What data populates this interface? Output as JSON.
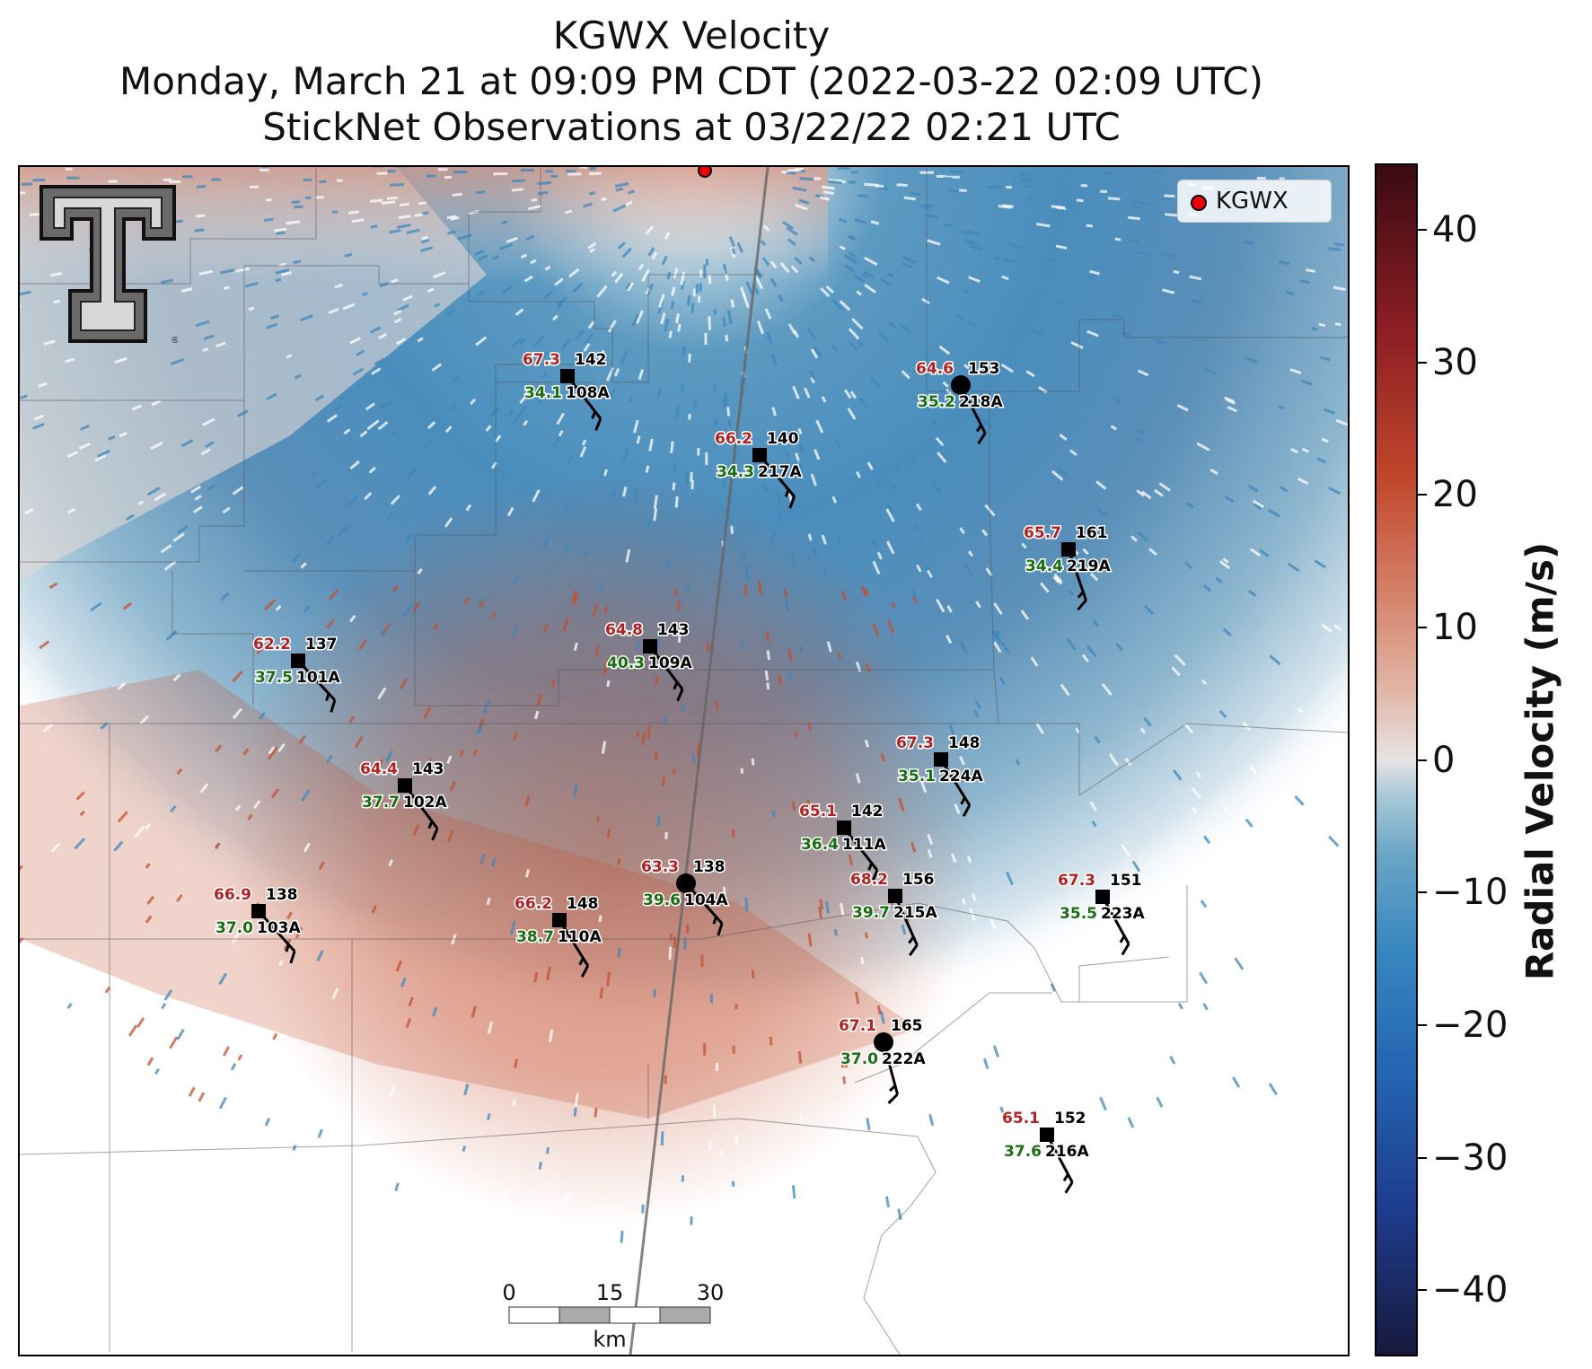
{
  "title": {
    "line1": "KGWX Velocity",
    "line2": "Monday, March 21 at 09:09 PM CDT (2022-03-22 02:09 UTC)",
    "line3": "StickNet Observations at 03/22/22 02:21 UTC"
  },
  "legend": {
    "label": "KGWX",
    "marker_color": "#e00000"
  },
  "colorbar": {
    "title": "Radial Velocity (m/s)",
    "min": -45,
    "max": 45,
    "ticks": [
      "40",
      "30",
      "20",
      "10",
      "0",
      "−10",
      "−20",
      "−30",
      "−40"
    ],
    "tick_values": [
      40,
      30,
      20,
      10,
      0,
      -10,
      -20,
      -30,
      -40
    ],
    "colors": [
      "#161a3d",
      "#2466b4",
      "#6aa5c6",
      "#e7e3e3",
      "#d48168",
      "#8d1e24",
      "#3a0b12"
    ]
  },
  "scalebar": {
    "labels": [
      "0",
      "15",
      "30"
    ],
    "unit": "km"
  },
  "logo": {
    "text": "T"
  },
  "stations": [
    {
      "id": "108A",
      "temp": "67.3",
      "dew": "34.1",
      "dir": "142",
      "marker": "square"
    },
    {
      "id": "218A",
      "temp": "64.6",
      "dew": "35.2",
      "dir": "153",
      "marker": "circle"
    },
    {
      "id": "217A",
      "temp": "66.2",
      "dew": "34.3",
      "dir": "140",
      "marker": "square"
    },
    {
      "id": "219A",
      "temp": "65.7",
      "dew": "34.4",
      "dir": "161",
      "marker": "square"
    },
    {
      "id": "101A",
      "temp": "62.2",
      "dew": "37.5",
      "dir": "137",
      "marker": "square"
    },
    {
      "id": "109A",
      "temp": "64.8",
      "dew": "40.3",
      "dir": "143",
      "marker": "square"
    },
    {
      "id": "224A",
      "temp": "67.3",
      "dew": "35.1",
      "dir": "148",
      "marker": "square"
    },
    {
      "id": "102A",
      "temp": "64.4",
      "dew": "37.7",
      "dir": "143",
      "marker": "square"
    },
    {
      "id": "111A",
      "temp": "65.1",
      "dew": "36.4",
      "dir": "142",
      "marker": "square"
    },
    {
      "id": "104A",
      "temp": "63.3",
      "dew": "39.6",
      "dir": "138",
      "marker": "circle"
    },
    {
      "id": "103A",
      "temp": "66.9",
      "dew": "37.0",
      "dir": "138",
      "marker": "square"
    },
    {
      "id": "110A",
      "temp": "66.2",
      "dew": "38.7",
      "dir": "148",
      "marker": "square"
    },
    {
      "id": "215A",
      "temp": "68.2",
      "dew": "39.7",
      "dir": "156",
      "marker": "square"
    },
    {
      "id": "223A",
      "temp": "67.3",
      "dew": "35.5",
      "dir": "151",
      "marker": "square"
    },
    {
      "id": "222A",
      "temp": "67.1",
      "dew": "37.0",
      "dir": "165",
      "marker": "circle"
    },
    {
      "id": "216A",
      "temp": "65.1",
      "dew": "37.6",
      "dir": "152",
      "marker": "square"
    }
  ]
}
